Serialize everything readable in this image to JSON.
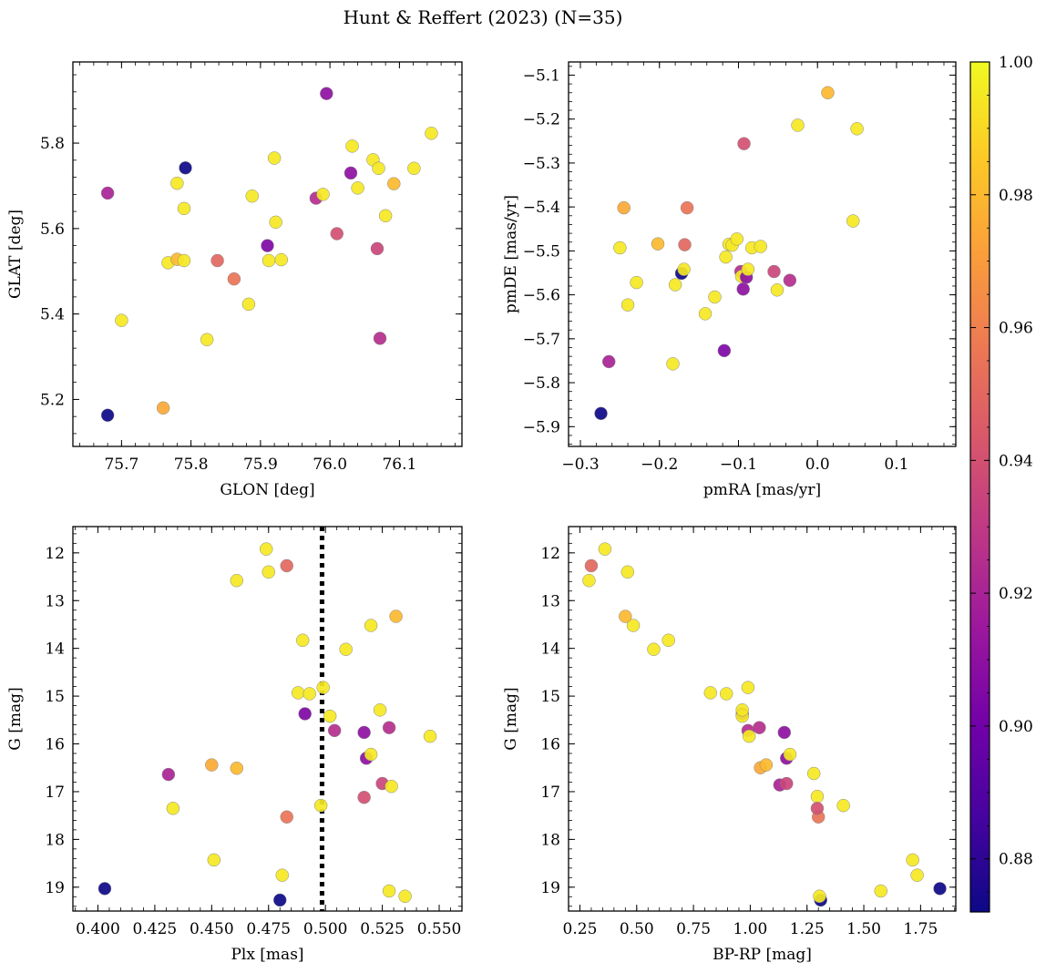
{
  "figure": {
    "title": "Hunt & Reffert (2023) (N=35)"
  },
  "colorbar": {
    "min": 0.872,
    "max": 1.0,
    "ticks": [
      0.88,
      0.9,
      0.92,
      0.94,
      0.96,
      0.98,
      1.0
    ],
    "tick_labels": [
      "0.88",
      "0.90",
      "0.92",
      "0.94",
      "0.96",
      "0.98",
      "1.00"
    ],
    "colormap": "plasma",
    "stops": [
      "#0d0887",
      "#46039f",
      "#7201a8",
      "#9c179e",
      "#bd3786",
      "#d8576b",
      "#ed7953",
      "#fb9f3a",
      "#fdca26",
      "#f0f921"
    ]
  },
  "chart_data": [
    {
      "type": "scatter",
      "xlabel": "GLON [deg]",
      "ylabel": "GLAT [deg]",
      "xlim": [
        75.63,
        76.19
      ],
      "ylim": [
        5.09,
        5.99
      ],
      "xticks": [
        75.7,
        75.8,
        75.9,
        76.0,
        76.1
      ],
      "xtick_labels": [
        "75.7",
        "75.8",
        "75.9",
        "76.0",
        "76.1"
      ],
      "yticks": [
        5.2,
        5.4,
        5.6,
        5.8
      ],
      "ytick_labels": [
        "5.2",
        "5.4",
        "5.6",
        "5.8"
      ],
      "x": [
        75.68,
        75.68,
        75.7,
        75.76,
        75.767,
        75.78,
        75.78,
        75.79,
        75.79,
        75.792,
        75.823,
        75.838,
        75.862,
        75.883,
        75.888,
        75.91,
        75.912,
        75.92,
        75.922,
        75.93,
        75.98,
        75.99,
        75.995,
        76.01,
        76.03,
        76.032,
        76.04,
        76.062,
        76.068,
        76.07,
        76.072,
        76.08,
        76.092,
        76.121,
        76.146
      ],
      "y": [
        5.163,
        5.683,
        5.385,
        5.18,
        5.52,
        5.706,
        5.528,
        5.525,
        5.647,
        5.742,
        5.34,
        5.525,
        5.482,
        5.423,
        5.676,
        5.56,
        5.525,
        5.765,
        5.615,
        5.527,
        5.671,
        5.68,
        5.916,
        5.588,
        5.73,
        5.793,
        5.695,
        5.761,
        5.553,
        5.741,
        5.343,
        5.63,
        5.705,
        5.741,
        5.823
      ]
    },
    {
      "type": "scatter",
      "xlabel": "pmRA [mas/yr]",
      "ylabel": "pmDE [mas/yr]",
      "xlim": [
        -0.315,
        0.175
      ],
      "ylim": [
        -5.945,
        -5.07
      ],
      "xticks": [
        -0.3,
        -0.2,
        -0.1,
        0.0,
        0.1
      ],
      "xtick_labels": [
        "−0.3",
        "−0.2",
        "−0.1",
        "0.0",
        "0.1"
      ],
      "yticks": [
        -5.9,
        -5.8,
        -5.7,
        -5.6,
        -5.5,
        -5.4,
        -5.3,
        -5.2,
        -5.1
      ],
      "ytick_labels": [
        "−5.9",
        "−5.8",
        "−5.7",
        "−5.6",
        "−5.5",
        "−5.4",
        "−5.3",
        "−5.2",
        "−5.1"
      ],
      "x": [
        -0.274,
        -0.264,
        -0.25,
        -0.245,
        -0.24,
        -0.229,
        -0.202,
        -0.183,
        -0.18,
        -0.172,
        -0.169,
        -0.168,
        -0.165,
        -0.142,
        -0.13,
        -0.118,
        -0.116,
        -0.112,
        -0.108,
        -0.102,
        -0.097,
        -0.096,
        -0.094,
        -0.093,
        -0.09,
        -0.088,
        -0.083,
        -0.072,
        -0.055,
        -0.051,
        -0.035,
        -0.025,
        0.013,
        0.045,
        0.05
      ],
      "y": [
        -5.87,
        -5.752,
        -5.493,
        -5.402,
        -5.623,
        -5.572,
        -5.484,
        -5.757,
        -5.577,
        -5.551,
        -5.542,
        -5.486,
        -5.402,
        -5.643,
        -5.605,
        -5.727,
        -5.514,
        -5.485,
        -5.487,
        -5.473,
        -5.547,
        -5.558,
        -5.587,
        -5.256,
        -5.56,
        -5.542,
        -5.493,
        -5.49,
        -5.547,
        -5.589,
        -5.567,
        -5.214,
        -5.14,
        -5.432,
        -5.222
      ]
    },
    {
      "type": "scatter",
      "xlabel": "Plx [mas]",
      "ylabel": "G [mag]",
      "xlim": [
        0.389,
        0.56
      ],
      "ylim": [
        19.5,
        11.45
      ],
      "xticks": [
        0.4,
        0.425,
        0.45,
        0.475,
        0.5,
        0.525,
        0.55
      ],
      "xtick_labels": [
        "0.400",
        "0.425",
        "0.450",
        "0.475",
        "0.500",
        "0.525",
        "0.550"
      ],
      "yticks": [
        12,
        13,
        14,
        15,
        16,
        17,
        18,
        19
      ],
      "ytick_labels": [
        "12",
        "13",
        "14",
        "15",
        "16",
        "17",
        "18",
        "19"
      ],
      "vline": 0.4985,
      "x": [
        0.403,
        0.431,
        0.433,
        0.45,
        0.451,
        0.461,
        0.461,
        0.474,
        0.475,
        0.48,
        0.481,
        0.483,
        0.483,
        0.488,
        0.49,
        0.491,
        0.493,
        0.498,
        0.499,
        0.502,
        0.504,
        0.509,
        0.517,
        0.517,
        0.518,
        0.52,
        0.52,
        0.524,
        0.525,
        0.528,
        0.528,
        0.529,
        0.531,
        0.535,
        0.546
      ],
      "y": [
        19.03,
        16.64,
        17.35,
        16.44,
        18.43,
        12.58,
        16.51,
        11.92,
        12.4,
        19.27,
        18.75,
        12.27,
        17.53,
        14.93,
        13.83,
        15.37,
        14.95,
        17.29,
        14.82,
        15.42,
        15.72,
        14.02,
        15.76,
        17.12,
        16.3,
        16.22,
        13.52,
        15.29,
        16.83,
        19.08,
        15.66,
        16.89,
        13.33,
        19.19,
        15.84
      ]
    },
    {
      "type": "scatter",
      "xlabel": "BP-RP [mag]",
      "ylabel": "G [mag]",
      "xlim": [
        0.2,
        1.905
      ],
      "ylim": [
        19.5,
        11.45
      ],
      "xticks": [
        0.25,
        0.5,
        0.75,
        1.0,
        1.25,
        1.5,
        1.75
      ],
      "xtick_labels": [
        "0.25",
        "0.50",
        "0.75",
        "1.00",
        "1.25",
        "1.50",
        "1.75"
      ],
      "yticks": [
        12,
        13,
        14,
        15,
        16,
        17,
        18,
        19
      ],
      "ytick_labels": [
        "12",
        "13",
        "14",
        "15",
        "16",
        "17",
        "18",
        "19"
      ],
      "x": [
        1.835,
        1.13,
        1.295,
        1.045,
        1.715,
        0.29,
        1.07,
        0.36,
        0.46,
        1.31,
        1.735,
        0.3,
        1.3,
        0.825,
        0.64,
        0.965,
        0.895,
        1.41,
        0.99,
        0.965,
        0.99,
        0.575,
        1.15,
        1.295,
        1.16,
        1.175,
        0.485,
        0.965,
        1.16,
        1.575,
        1.04,
        1.28,
        0.45,
        1.305,
        0.995
      ],
      "y": [
        19.03,
        16.86,
        17.1,
        16.5,
        18.43,
        12.58,
        16.44,
        11.92,
        12.4,
        19.27,
        18.75,
        12.27,
        17.53,
        14.93,
        13.83,
        15.37,
        14.95,
        17.29,
        14.82,
        15.42,
        15.72,
        14.02,
        15.76,
        17.35,
        16.3,
        16.22,
        13.52,
        15.29,
        16.83,
        19.08,
        15.66,
        16.62,
        13.33,
        19.19,
        15.84
      ]
    }
  ],
  "point_color_values": [
    0.872,
    0.92,
    0.995,
    0.975,
    0.995,
    0.995,
    0.98,
    0.995,
    0.995,
    0.872,
    0.995,
    0.95,
    0.955,
    0.995,
    0.995,
    0.905,
    0.995,
    0.995,
    0.995,
    0.995,
    0.925,
    0.995,
    0.91,
    0.94,
    0.91,
    0.995,
    0.995,
    0.995,
    0.935,
    0.995,
    0.925,
    0.995,
    0.98,
    0.995,
    0.995
  ]
}
